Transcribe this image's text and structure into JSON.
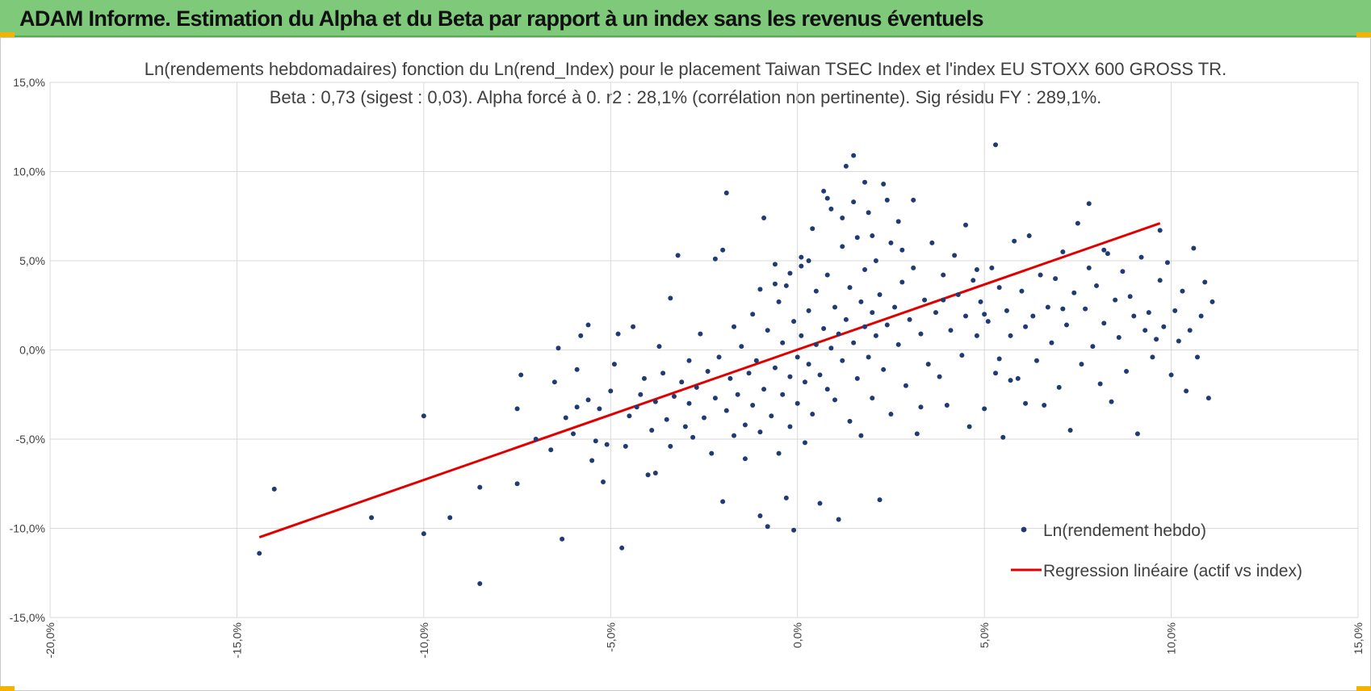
{
  "banner": {
    "title": "ADAM Informe. Estimation du Alpha et du Beta par rapport à un index sans les revenus éventuels"
  },
  "colors": {
    "banner_bg": "#7ec97a",
    "points": "#1f3b73",
    "regression": "#e00000",
    "grid": "#d9d9d9",
    "accent": "#f2b400"
  },
  "chart_data": {
    "type": "scatter",
    "title": "Ln(rendements hebdomadaires) fonction du Ln(rend_Index) pour le placement Taiwan TSEC Index et l'index EU STOXX 600 GROSS TR.",
    "subtitle": "Beta : 0,73 (sigest : 0,03).  Alpha forcé à 0. r2 : 28,1% (corrélation non pertinente). Sig résidu FY : 289,1%.",
    "xlabel": "",
    "ylabel": "",
    "xlim": [
      -0.2,
      0.15
    ],
    "ylim": [
      -0.15,
      0.15
    ],
    "x_ticks": [
      "-20,0%",
      "-15,0%",
      "-10,0%",
      "-5,0%",
      "0,0%",
      "5,0%",
      "10,0%",
      "15,0%"
    ],
    "y_ticks": [
      "15,0%",
      "10,0%",
      "5,0%",
      "0,0%",
      "-5,0%",
      "-10,0%",
      "-15,0%"
    ],
    "grid": true,
    "legend_position": "bottom-right",
    "series": [
      {
        "name": "Ln(rendement hebdo)",
        "kind": "scatter",
        "color": "#1f3b73",
        "points": [
          [
            -0.144,
            -0.114
          ],
          [
            -0.14,
            -0.078
          ],
          [
            -0.114,
            -0.094
          ],
          [
            -0.1,
            -0.037
          ],
          [
            -0.1,
            -0.103
          ],
          [
            -0.093,
            -0.094
          ],
          [
            -0.085,
            -0.131
          ],
          [
            -0.085,
            -0.077
          ],
          [
            -0.075,
            -0.075
          ],
          [
            -0.075,
            -0.033
          ],
          [
            -0.074,
            -0.014
          ],
          [
            -0.07,
            -0.05
          ],
          [
            -0.066,
            -0.056
          ],
          [
            -0.065,
            -0.018
          ],
          [
            -0.064,
            0.001
          ],
          [
            -0.063,
            -0.106
          ],
          [
            -0.062,
            -0.038
          ],
          [
            -0.06,
            -0.047
          ],
          [
            -0.059,
            -0.011
          ],
          [
            -0.059,
            -0.032
          ],
          [
            -0.058,
            0.008
          ],
          [
            -0.056,
            -0.028
          ],
          [
            -0.056,
            0.014
          ],
          [
            -0.055,
            -0.062
          ],
          [
            -0.054,
            -0.051
          ],
          [
            -0.053,
            -0.033
          ],
          [
            -0.052,
            -0.074
          ],
          [
            -0.051,
            -0.053
          ],
          [
            -0.05,
            -0.023
          ],
          [
            -0.049,
            -0.008
          ],
          [
            -0.048,
            0.009
          ],
          [
            -0.047,
            -0.111
          ],
          [
            -0.046,
            -0.054
          ],
          [
            -0.045,
            -0.037
          ],
          [
            -0.044,
            0.013
          ],
          [
            -0.043,
            -0.032
          ],
          [
            -0.042,
            -0.025
          ],
          [
            -0.041,
            -0.016
          ],
          [
            -0.04,
            -0.07
          ],
          [
            -0.039,
            -0.045
          ],
          [
            -0.038,
            -0.069
          ],
          [
            -0.038,
            -0.029
          ],
          [
            -0.037,
            0.002
          ],
          [
            -0.036,
            -0.013
          ],
          [
            -0.035,
            -0.039
          ],
          [
            -0.034,
            0.029
          ],
          [
            -0.034,
            -0.054
          ],
          [
            -0.033,
            -0.026
          ],
          [
            -0.032,
            0.053
          ],
          [
            -0.031,
            -0.018
          ],
          [
            -0.03,
            -0.043
          ],
          [
            -0.029,
            -0.03
          ],
          [
            -0.029,
            -0.006
          ],
          [
            -0.028,
            -0.049
          ],
          [
            -0.027,
            -0.021
          ],
          [
            -0.026,
            0.009
          ],
          [
            -0.025,
            -0.038
          ],
          [
            -0.024,
            -0.012
          ],
          [
            -0.023,
            -0.058
          ],
          [
            -0.022,
            0.051
          ],
          [
            -0.022,
            -0.027
          ],
          [
            -0.021,
            -0.004
          ],
          [
            -0.02,
            -0.085
          ],
          [
            -0.02,
            0.056
          ],
          [
            -0.019,
            0.088
          ],
          [
            -0.019,
            -0.034
          ],
          [
            -0.018,
            -0.016
          ],
          [
            -0.017,
            0.013
          ],
          [
            -0.017,
            -0.048
          ],
          [
            -0.016,
            -0.025
          ],
          [
            -0.015,
            0.002
          ],
          [
            -0.014,
            -0.061
          ],
          [
            -0.014,
            -0.042
          ],
          [
            -0.013,
            -0.013
          ],
          [
            -0.012,
            0.02
          ],
          [
            -0.012,
            -0.031
          ],
          [
            -0.011,
            -0.006
          ],
          [
            -0.01,
            -0.093
          ],
          [
            -0.01,
            -0.046
          ],
          [
            -0.009,
            0.074
          ],
          [
            -0.009,
            -0.022
          ],
          [
            -0.008,
            0.011
          ],
          [
            -0.008,
            -0.099
          ],
          [
            -0.007,
            -0.037
          ],
          [
            -0.006,
            0.048
          ],
          [
            -0.006,
            -0.01
          ],
          [
            -0.005,
            -0.058
          ],
          [
            -0.005,
            0.027
          ],
          [
            -0.004,
            -0.025
          ],
          [
            -0.004,
            0.004
          ],
          [
            -0.003,
            -0.083
          ],
          [
            -0.003,
            0.036
          ],
          [
            -0.002,
            -0.015
          ],
          [
            -0.002,
            -0.043
          ],
          [
            -0.001,
            0.016
          ],
          [
            -0.001,
            -0.101
          ],
          [
            0.0,
            -0.004
          ],
          [
            0.0,
            -0.03
          ],
          [
            0.001,
            0.047
          ],
          [
            0.001,
            0.008
          ],
          [
            0.002,
            -0.052
          ],
          [
            0.002,
            -0.018
          ],
          [
            0.003,
            0.022
          ],
          [
            0.003,
            -0.008
          ],
          [
            0.004,
            0.068
          ],
          [
            0.004,
            -0.036
          ],
          [
            0.005,
            0.003
          ],
          [
            0.005,
            0.033
          ],
          [
            0.006,
            -0.086
          ],
          [
            0.006,
            -0.014
          ],
          [
            0.007,
            0.089
          ],
          [
            0.007,
            0.012
          ],
          [
            0.008,
            -0.022
          ],
          [
            0.008,
            0.042
          ],
          [
            0.009,
            0.001
          ],
          [
            0.009,
            0.079
          ],
          [
            0.01,
            -0.028
          ],
          [
            0.01,
            0.024
          ],
          [
            0.011,
            0.009
          ],
          [
            0.011,
            -0.095
          ],
          [
            0.012,
            0.058
          ],
          [
            0.012,
            -0.006
          ],
          [
            0.013,
            0.103
          ],
          [
            0.013,
            0.017
          ],
          [
            0.014,
            -0.04
          ],
          [
            0.014,
            0.035
          ],
          [
            0.015,
            0.109
          ],
          [
            0.015,
            0.004
          ],
          [
            0.016,
            0.063
          ],
          [
            0.016,
            -0.016
          ],
          [
            0.017,
            0.027
          ],
          [
            0.017,
            -0.048
          ],
          [
            0.018,
            0.013
          ],
          [
            0.018,
            0.045
          ],
          [
            0.019,
            -0.004
          ],
          [
            0.019,
            0.077
          ],
          [
            0.02,
            0.021
          ],
          [
            0.02,
            -0.027
          ],
          [
            0.021,
            0.05
          ],
          [
            0.021,
            0.008
          ],
          [
            0.022,
            -0.084
          ],
          [
            0.022,
            0.031
          ],
          [
            0.023,
            0.093
          ],
          [
            0.023,
            -0.011
          ],
          [
            0.024,
            0.014
          ],
          [
            0.025,
            0.06
          ],
          [
            0.025,
            -0.036
          ],
          [
            0.026,
            0.024
          ],
          [
            0.027,
            0.072
          ],
          [
            0.027,
            0.003
          ],
          [
            0.028,
            0.038
          ],
          [
            0.029,
            -0.02
          ],
          [
            0.03,
            0.017
          ],
          [
            0.031,
            0.084
          ],
          [
            0.031,
            0.046
          ],
          [
            0.032,
            -0.047
          ],
          [
            0.033,
            0.009
          ],
          [
            0.034,
            0.028
          ],
          [
            0.035,
            -0.008
          ],
          [
            0.036,
            0.06
          ],
          [
            0.037,
            0.021
          ],
          [
            0.038,
            -0.015
          ],
          [
            0.039,
            0.042
          ],
          [
            0.04,
            -0.031
          ],
          [
            0.041,
            0.011
          ],
          [
            0.042,
            0.053
          ],
          [
            0.043,
            0.031
          ],
          [
            0.044,
            -0.003
          ],
          [
            0.045,
            0.019
          ],
          [
            0.046,
            -0.043
          ],
          [
            0.047,
            0.039
          ],
          [
            0.048,
            0.008
          ],
          [
            0.049,
            0.027
          ],
          [
            0.05,
            -0.033
          ],
          [
            0.051,
            0.016
          ],
          [
            0.052,
            0.046
          ],
          [
            0.053,
            -0.013
          ],
          [
            0.054,
            0.035
          ],
          [
            0.055,
            -0.049
          ],
          [
            0.056,
            0.022
          ],
          [
            0.057,
            0.008
          ],
          [
            0.058,
            0.061
          ],
          [
            0.059,
            -0.016
          ],
          [
            0.06,
            0.033
          ],
          [
            0.061,
            -0.03
          ],
          [
            0.062,
            0.064
          ],
          [
            0.063,
            0.019
          ],
          [
            0.064,
            -0.006
          ],
          [
            0.065,
            0.042
          ],
          [
            0.066,
            -0.031
          ],
          [
            0.067,
            0.024
          ],
          [
            0.068,
            0.004
          ],
          [
            0.069,
            0.04
          ],
          [
            0.07,
            -0.021
          ],
          [
            0.071,
            0.055
          ],
          [
            0.072,
            0.014
          ],
          [
            0.073,
            -0.045
          ],
          [
            0.074,
            0.032
          ],
          [
            0.075,
            0.071
          ],
          [
            0.076,
            -0.008
          ],
          [
            0.077,
            0.023
          ],
          [
            0.078,
            0.046
          ],
          [
            0.079,
            0.002
          ],
          [
            0.08,
            0.036
          ],
          [
            0.081,
            -0.019
          ],
          [
            0.082,
            0.015
          ],
          [
            0.083,
            0.054
          ],
          [
            0.084,
            -0.029
          ],
          [
            0.085,
            0.028
          ],
          [
            0.086,
            0.007
          ],
          [
            0.087,
            0.044
          ],
          [
            0.088,
            -0.012
          ],
          [
            0.089,
            0.03
          ],
          [
            0.09,
            0.019
          ],
          [
            0.091,
            -0.047
          ],
          [
            0.092,
            0.052
          ],
          [
            0.093,
            0.011
          ],
          [
            0.094,
            0.021
          ],
          [
            0.095,
            -0.004
          ],
          [
            0.096,
            0.006
          ],
          [
            0.097,
            0.039
          ],
          [
            0.098,
            0.013
          ],
          [
            0.099,
            0.049
          ],
          [
            0.1,
            -0.014
          ],
          [
            0.101,
            0.022
          ],
          [
            0.102,
            0.005
          ],
          [
            0.103,
            0.033
          ],
          [
            0.104,
            -0.023
          ],
          [
            0.105,
            0.011
          ],
          [
            0.106,
            0.057
          ],
          [
            0.107,
            -0.004
          ],
          [
            0.108,
            0.019
          ],
          [
            0.109,
            0.038
          ],
          [
            0.11,
            -0.027
          ],
          [
            0.111,
            0.027
          ],
          [
            0.053,
            0.115
          ],
          [
            0.078,
            0.082
          ],
          [
            0.097,
            0.067
          ],
          [
            0.082,
            0.056
          ],
          [
            0.071,
            0.023
          ],
          [
            0.061,
            0.013
          ],
          [
            0.057,
            -0.017
          ],
          [
            0.054,
            -0.005
          ],
          [
            0.05,
            0.02
          ],
          [
            0.048,
            0.045
          ],
          [
            0.045,
            0.07
          ],
          [
            0.039,
            0.028
          ],
          [
            0.033,
            -0.032
          ],
          [
            0.028,
            0.056
          ],
          [
            0.024,
            0.084
          ],
          [
            0.02,
            0.064
          ],
          [
            0.018,
            0.094
          ],
          [
            0.015,
            0.083
          ],
          [
            0.012,
            0.074
          ],
          [
            0.008,
            0.085
          ],
          [
            0.003,
            0.05
          ],
          [
            0.001,
            0.052
          ],
          [
            -0.002,
            0.043
          ],
          [
            -0.006,
            0.037
          ],
          [
            -0.01,
            0.034
          ]
        ]
      },
      {
        "name": "Regression linéaire (actif vs index)",
        "kind": "line",
        "color": "#e00000",
        "x": [
          -0.144,
          0.097
        ],
        "y": [
          -0.105,
          0.071
        ]
      }
    ]
  }
}
